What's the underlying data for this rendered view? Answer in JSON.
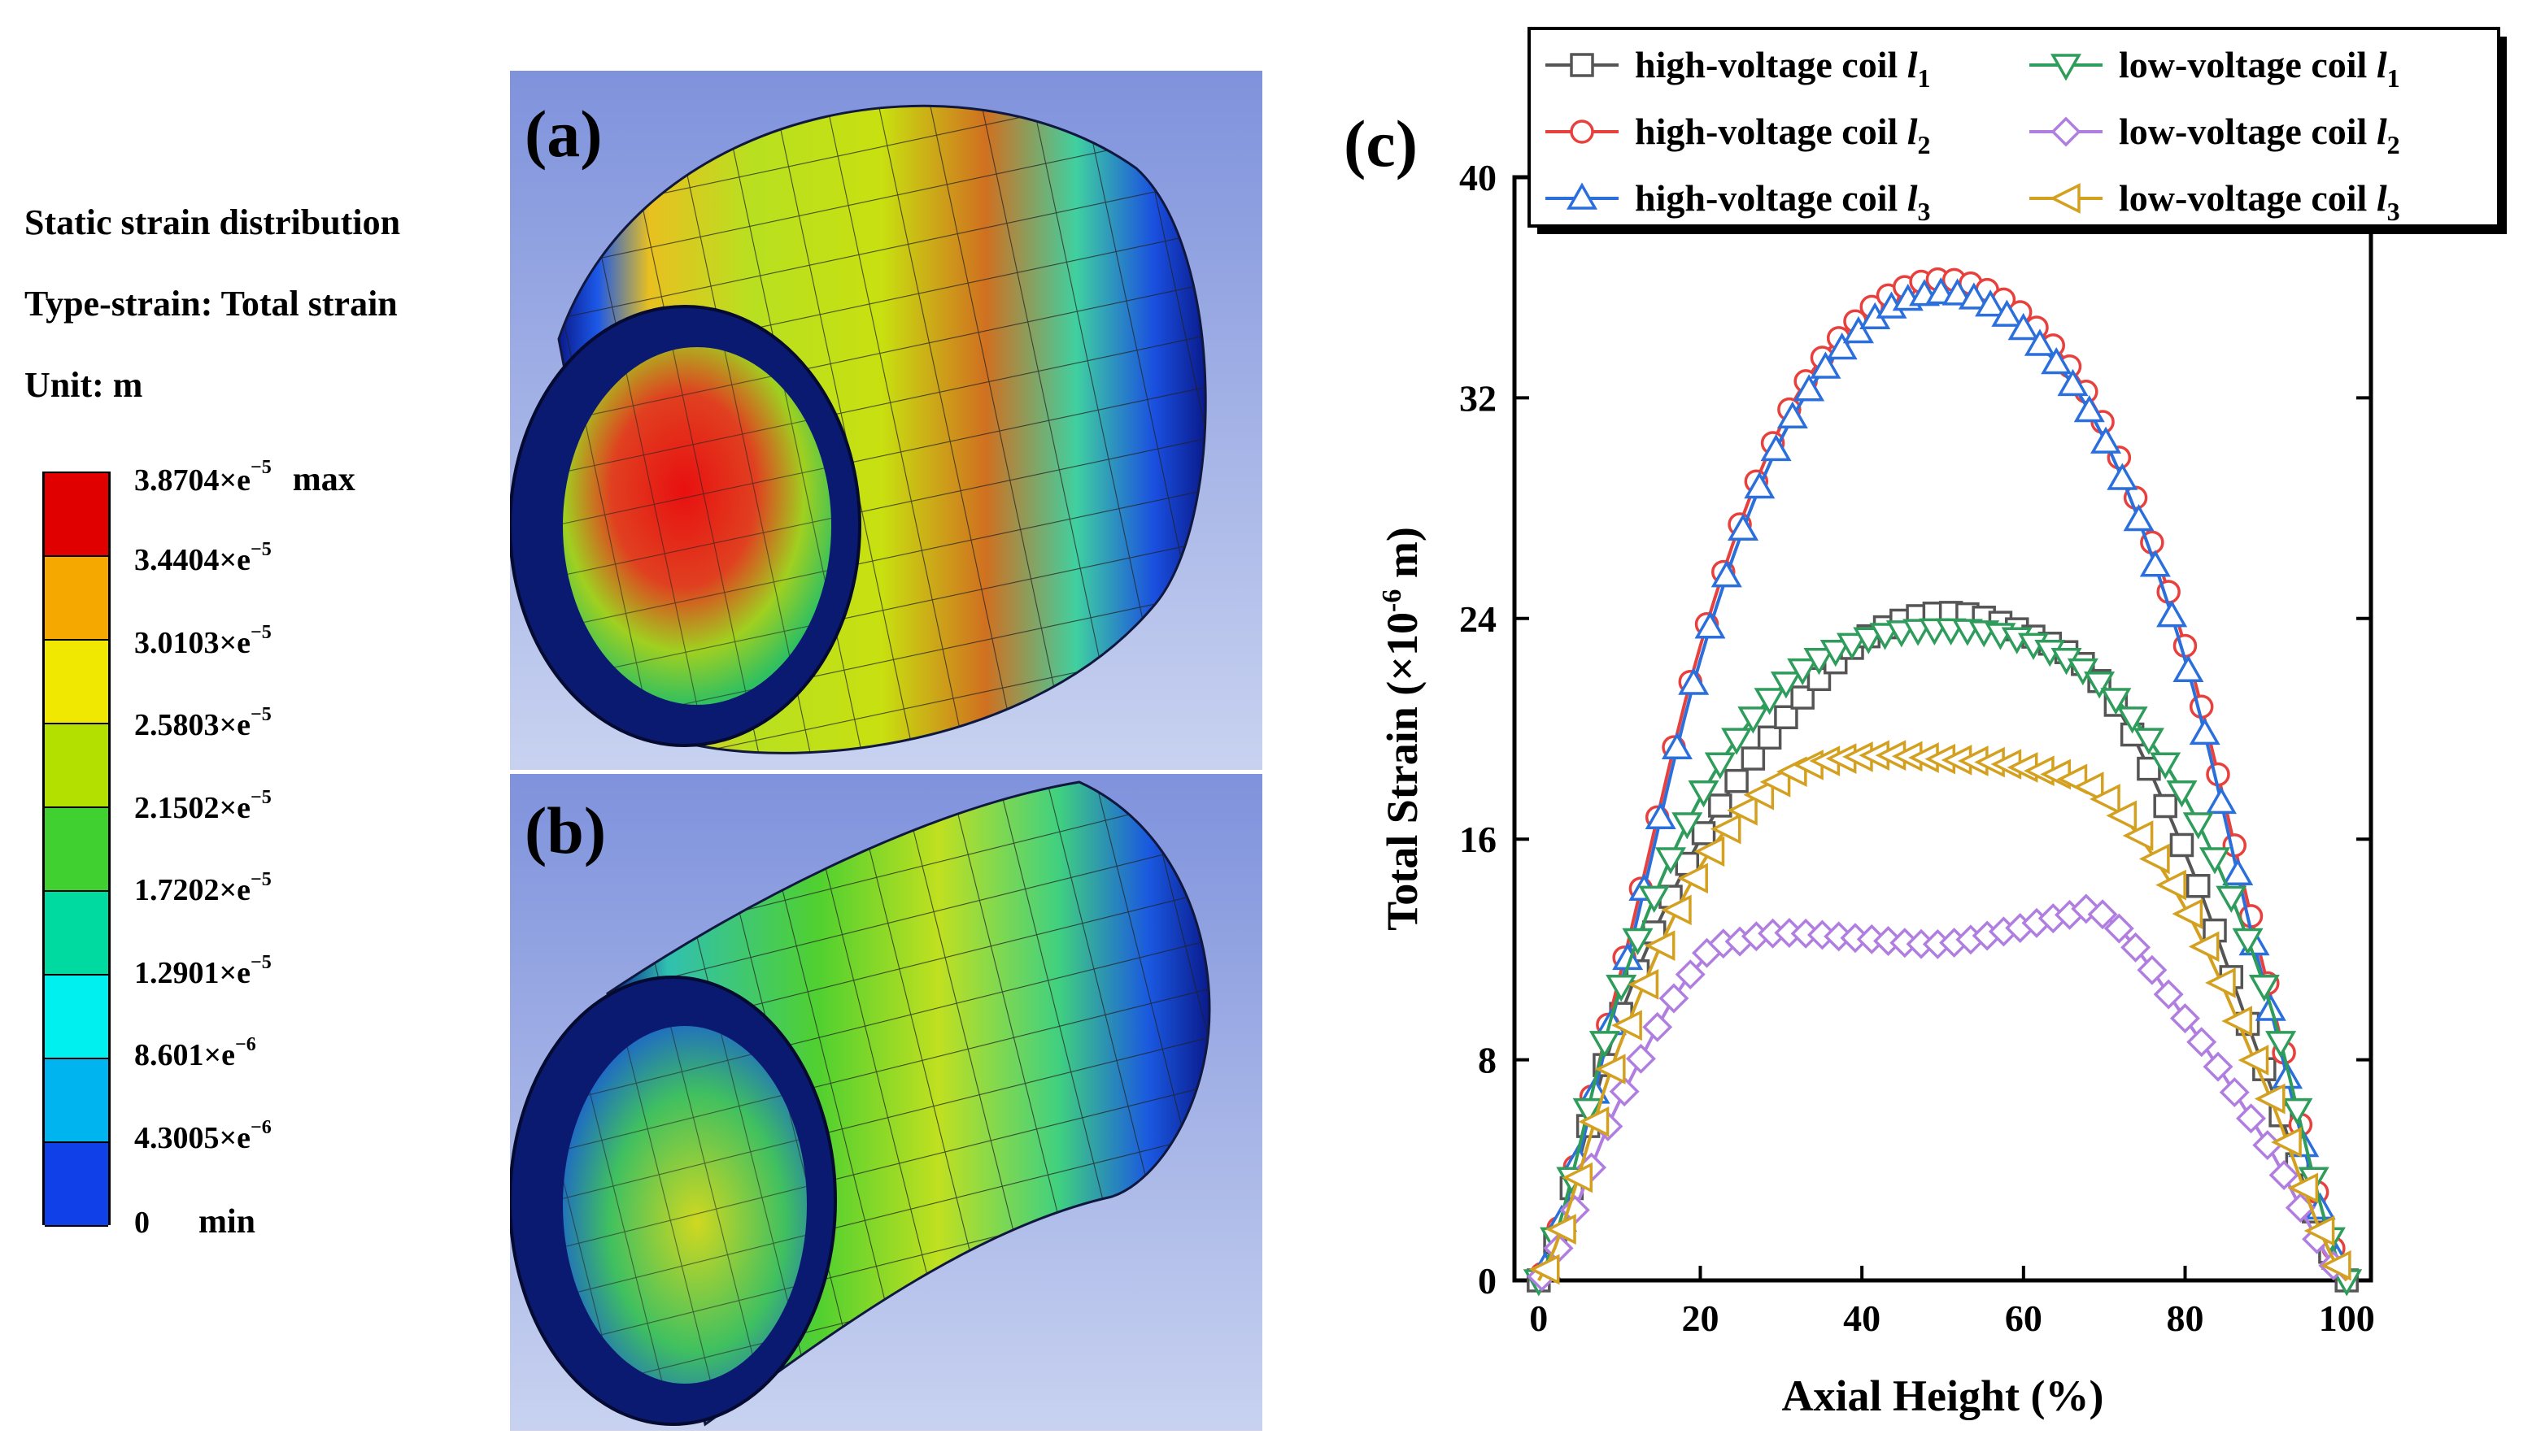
{
  "panel_labels": {
    "a": "(a)",
    "b": "(b)",
    "c": "(c)"
  },
  "info": {
    "line1": "Static strain distribution",
    "line2": "Type-strain: Total strain",
    "line3": "Unit: m"
  },
  "colorbar": {
    "colors": [
      "#e00000",
      "#f5a800",
      "#f0e800",
      "#b4e000",
      "#40d030",
      "#00d9a0",
      "#00f0f0",
      "#00b4f0",
      "#1040e8"
    ],
    "labels": [
      {
        "mant": "3.8704×e",
        "exp": "−5",
        "suffix": "max"
      },
      {
        "mant": "3.4404×e",
        "exp": "−5",
        "suffix": ""
      },
      {
        "mant": "3.0103×e",
        "exp": "−5",
        "suffix": ""
      },
      {
        "mant": "2.5803×e",
        "exp": "−5",
        "suffix": ""
      },
      {
        "mant": "2.1502×e",
        "exp": "−5",
        "suffix": ""
      },
      {
        "mant": "1.7202×e",
        "exp": "−5",
        "suffix": ""
      },
      {
        "mant": "1.2901×e",
        "exp": "−5",
        "suffix": ""
      },
      {
        "mant": "8.601×e",
        "exp": "−6",
        "suffix": ""
      },
      {
        "mant": "4.3005×e",
        "exp": "−6",
        "suffix": ""
      },
      {
        "mant": "0",
        "exp": "",
        "suffix": "min"
      }
    ]
  },
  "chart_data": {
    "type": "line",
    "xlabel": "Axial Height (%)",
    "ylabel": "Total Strain (×10⁻⁶ m)",
    "ylabel_main": "Total Strain (×10",
    "ylabel_sup": "-6",
    "ylabel_unit": " m)",
    "xlim": [
      -3,
      103
    ],
    "ylim": [
      0,
      40
    ],
    "xticks": [
      0,
      20,
      40,
      60,
      80,
      100
    ],
    "yticks": [
      0,
      8,
      16,
      24,
      32,
      40
    ],
    "legend_position": "top-right",
    "series": [
      {
        "name": "high-voltage coil l1",
        "label": "high-voltage coil ",
        "sub": "1",
        "marker": "square",
        "color": "#555555",
        "x": [
          0,
          10,
          20,
          30,
          40,
          50,
          60,
          70,
          80,
          90,
          100
        ],
        "y": [
          0,
          9.5,
          16,
          20.2,
          23.2,
          24.2,
          23.5,
          21.5,
          15.5,
          7.5,
          0
        ]
      },
      {
        "name": "high-voltage coil l2",
        "label": "high-voltage coil ",
        "sub": "2",
        "marker": "circle",
        "color": "#e8403c",
        "x": [
          0,
          10,
          20,
          30,
          40,
          50,
          60,
          70,
          80,
          90,
          100
        ],
        "y": [
          0,
          11,
          23,
          31,
          35,
          36.3,
          35,
          31,
          23,
          11,
          0
        ]
      },
      {
        "name": "high-voltage coil l3",
        "label": "high-voltage coil ",
        "sub": "3",
        "marker": "triangle-up",
        "color": "#2a6fdb",
        "x": [
          0,
          10,
          20,
          30,
          40,
          50,
          60,
          70,
          80,
          90,
          100
        ],
        "y": [
          0,
          10.5,
          22.5,
          30.5,
          34.5,
          35.8,
          34.5,
          30.5,
          22.5,
          10.5,
          0
        ]
      },
      {
        "name": "low-voltage coil l1",
        "label": "low-voltage coil  ",
        "sub": "1",
        "marker": "triangle-down",
        "color": "#2e9c5a",
        "x": [
          0,
          10,
          20,
          30,
          40,
          50,
          60,
          70,
          80,
          90,
          100
        ],
        "y": [
          0,
          10.5,
          17.5,
          21.5,
          23.2,
          23.6,
          23.2,
          21.5,
          17.5,
          10.5,
          0
        ]
      },
      {
        "name": "low-voltage coil l2",
        "label": "low-voltage coil  ",
        "sub": "2",
        "marker": "diamond",
        "color": "#b07ee0",
        "x": [
          0,
          10,
          20,
          25,
          30,
          40,
          50,
          60,
          65,
          70,
          80,
          90,
          100
        ],
        "y": [
          0,
          6.5,
          11.5,
          12.3,
          12.6,
          12.4,
          12.2,
          12.8,
          13.2,
          13.2,
          9.5,
          5,
          0
        ]
      },
      {
        "name": "low-voltage coil l3",
        "label": "low-voltage coil  ",
        "sub": "3",
        "marker": "triangle-left",
        "color": "#d4a020",
        "x": [
          0,
          10,
          20,
          30,
          40,
          50,
          60,
          70,
          80,
          90,
          100
        ],
        "y": [
          0,
          8.5,
          15,
          18.2,
          19,
          18.9,
          18.6,
          17.5,
          13.5,
          7,
          0
        ]
      }
    ]
  }
}
